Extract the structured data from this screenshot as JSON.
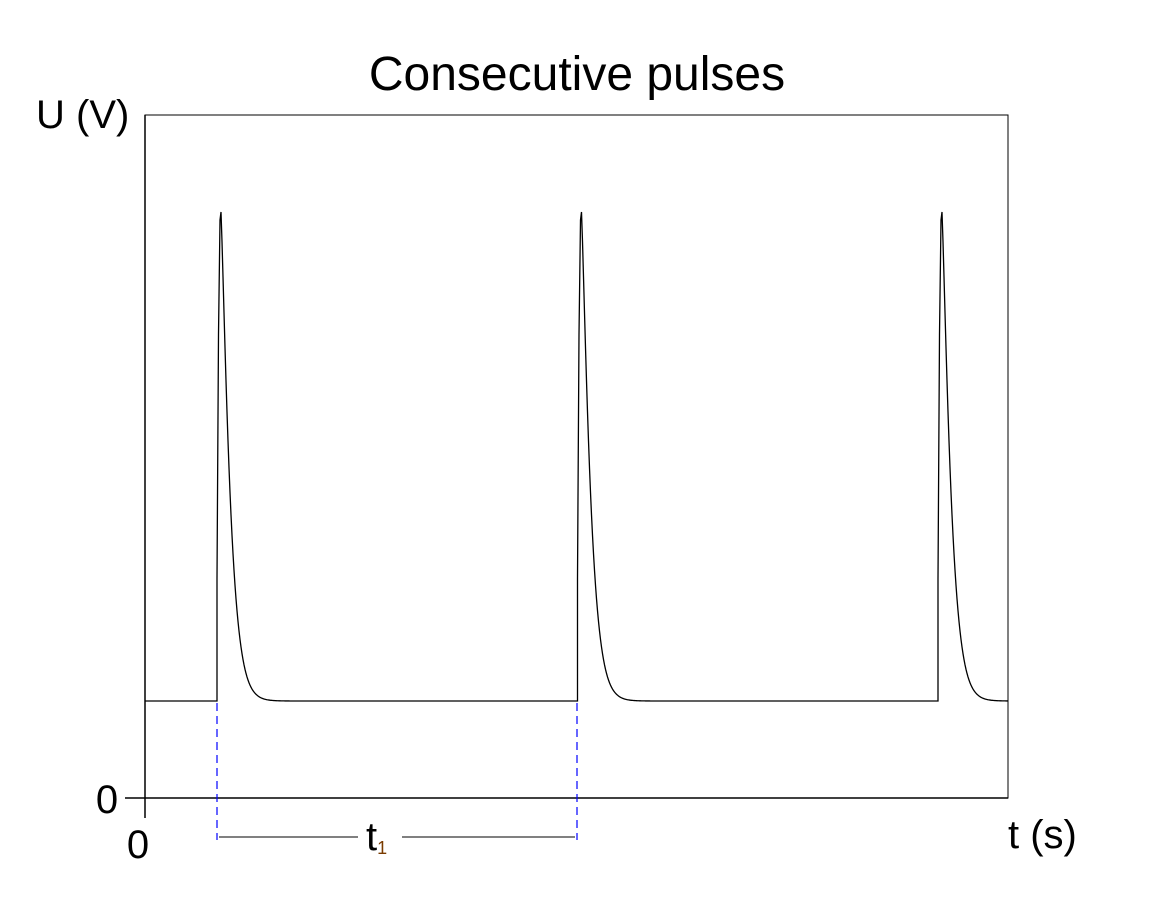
{
  "chart_data": {
    "type": "line",
    "title": "Consecutive pulses",
    "ylabel": "U (V)",
    "xlabel": "t (s)",
    "x_ticks": [
      "0"
    ],
    "y_ticks": [
      "0"
    ],
    "pulse_count": 3,
    "grid": false,
    "legend": "none",
    "annotation": {
      "label": "t",
      "subscript": "1",
      "meaning": "period between consecutive pulses"
    },
    "colors": {
      "signal": "#000000",
      "annotation": "#0000ff",
      "axes": "#000000"
    }
  }
}
